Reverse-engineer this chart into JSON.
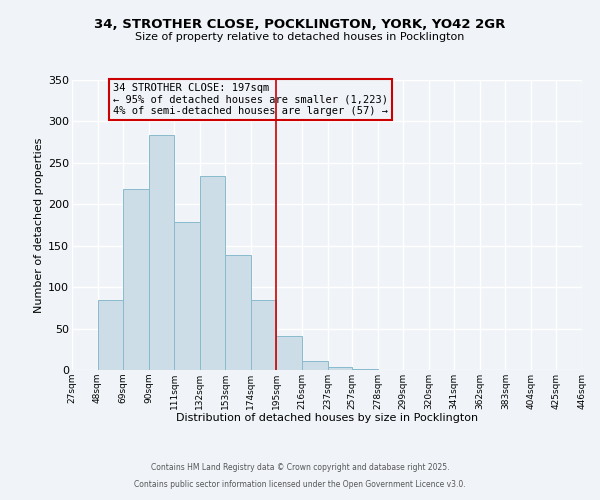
{
  "title": "34, STROTHER CLOSE, POCKLINGTON, YORK, YO42 2GR",
  "subtitle": "Size of property relative to detached houses in Pocklington",
  "xlabel": "Distribution of detached houses by size in Pocklington",
  "ylabel": "Number of detached properties",
  "bar_edges": [
    27,
    48,
    69,
    90,
    111,
    132,
    153,
    174,
    195,
    216,
    237,
    257,
    278,
    299,
    320,
    341,
    362,
    383,
    404,
    425,
    446
  ],
  "bar_heights": [
    0,
    85,
    219,
    284,
    179,
    234,
    139,
    85,
    41,
    11,
    4,
    1,
    0,
    0,
    0,
    0,
    0,
    0,
    0,
    0
  ],
  "bar_color": "#ccdde8",
  "bar_edgecolor": "#88bbcc",
  "vline_x": 195,
  "vline_color": "#cc0000",
  "ylim": [
    0,
    350
  ],
  "xlim": [
    27,
    446
  ],
  "annotation_title": "34 STROTHER CLOSE: 197sqm",
  "annotation_line1": "← 95% of detached houses are smaller (1,223)",
  "annotation_line2": "4% of semi-detached houses are larger (57) →",
  "annotation_box_color": "#cc0000",
  "footer_line1": "Contains HM Land Registry data © Crown copyright and database right 2025.",
  "footer_line2": "Contains public sector information licensed under the Open Government Licence v3.0.",
  "tick_labels": [
    "27sqm",
    "48sqm",
    "69sqm",
    "90sqm",
    "111sqm",
    "132sqm",
    "153sqm",
    "174sqm",
    "195sqm",
    "216sqm",
    "237sqm",
    "257sqm",
    "278sqm",
    "299sqm",
    "320sqm",
    "341sqm",
    "362sqm",
    "383sqm",
    "404sqm",
    "425sqm",
    "446sqm"
  ],
  "background_color": "#f0f4f8",
  "grid_color": "#ffffff",
  "yticks": [
    0,
    50,
    100,
    150,
    200,
    250,
    300,
    350
  ]
}
